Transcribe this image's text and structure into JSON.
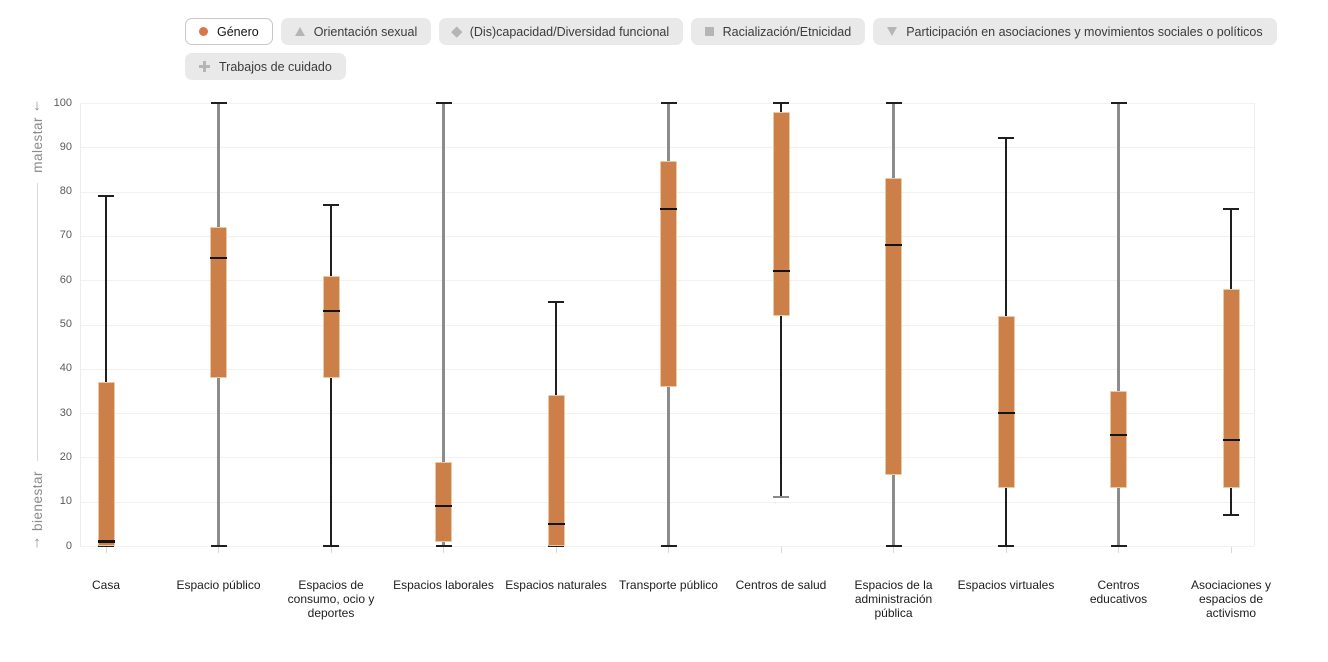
{
  "colors": {
    "accent": "#d9764a",
    "box_fill": "#cd7f4a",
    "box_border": "#e9c9a2",
    "inactive_icon": "#b5b5b5",
    "gray_line": "#8c8c8c",
    "dark_line": "#1f1f1f"
  },
  "legend": {
    "buttons": [
      {
        "label": "Género",
        "icon": "circle-icon",
        "active": true,
        "row": 1
      },
      {
        "label": "Orientación sexual",
        "icon": "triangle-up-icon",
        "active": false,
        "row": 1
      },
      {
        "label": "(Dis)capacidad/Diversidad funcional",
        "icon": "diamond-icon",
        "active": false,
        "row": 1
      },
      {
        "label": "Racialización/Etnicidad",
        "icon": "square-icon",
        "active": false,
        "row": 1
      },
      {
        "label": "Participación en asociaciones y movimientos sociales o políticos",
        "icon": "triangle-down-icon",
        "active": false,
        "row": 1
      },
      {
        "label": "Trabajos de cuidado",
        "icon": "plus-icon",
        "active": false,
        "row": 2
      }
    ]
  },
  "y_axis": {
    "top_arrow": "↓",
    "top_label": "malestar",
    "bottom_label": "bienestar",
    "bottom_arrow": "↑"
  },
  "chart_data": {
    "type": "boxplot",
    "active_series": "Género",
    "ylim": [
      0,
      100
    ],
    "yticks": [
      0,
      10,
      20,
      30,
      40,
      50,
      60,
      70,
      80,
      90,
      100
    ],
    "grid": true,
    "categories": [
      "Casa",
      "Espacio público",
      "Espacios de consumo, ocio y deportes",
      "Espacios laborales",
      "Espacios naturales",
      "Transporte público",
      "Centros de salud",
      "Espacios de la administración pública",
      "Espacios virtuales",
      "Centros educativos",
      "Asociaciones y espacios de activismo"
    ],
    "boxes": [
      {
        "category": "Casa",
        "label": "Casa",
        "low": 0,
        "q1": 0,
        "median": 1,
        "q3": 37,
        "high": 79,
        "range_line": "black"
      },
      {
        "category": "Espacio público",
        "label": "Espacio público",
        "low": 0,
        "q1": 38,
        "median": 65,
        "q3": 72,
        "high": 100,
        "range_line": "gray"
      },
      {
        "category": "Espacios de consumo, ocio y deportes",
        "label": "Espacios de\nconsumo, ocio y\ndeportes",
        "low": 0,
        "q1": 38,
        "median": 53,
        "q3": 61,
        "high": 77,
        "range_line": "black"
      },
      {
        "category": "Espacios laborales",
        "label": "Espacios laborales",
        "low": 0,
        "q1": 1,
        "median": 9,
        "q3": 19,
        "high": 100,
        "range_line": "gray"
      },
      {
        "category": "Espacios naturales",
        "label": "Espacios naturales",
        "low": 0,
        "q1": 0,
        "median": 5,
        "q3": 34,
        "high": 55,
        "range_line": "black"
      },
      {
        "category": "Transporte público",
        "label": "Transporte público",
        "low": 0,
        "q1": 36,
        "median": 76,
        "q3": 87,
        "high": 100,
        "range_line": "gray"
      },
      {
        "category": "Centros de salud",
        "label": "Centros de salud",
        "low": 11,
        "q1": 52,
        "median": 62,
        "q3": 98,
        "high": 100,
        "range_line": "black",
        "low_cap": "gray"
      },
      {
        "category": "Espacios de la administración pública",
        "label": "Espacios de la\nadministración\npública",
        "low": 0,
        "q1": 16,
        "median": 68,
        "q3": 83,
        "high": 100,
        "range_line": "gray"
      },
      {
        "category": "Espacios virtuales",
        "label": "Espacios virtuales",
        "low": 0,
        "q1": 13,
        "median": 30,
        "q3": 52,
        "high": 92,
        "range_line": "black"
      },
      {
        "category": "Centros educativos",
        "label": "Centros\neducativos",
        "low": 0,
        "q1": 13,
        "median": 25,
        "q3": 35,
        "high": 100,
        "range_line": "gray"
      },
      {
        "category": "Asociaciones y espacios de activismo",
        "label": "Asociaciones y\nespacios de\nactivismo",
        "low": 7,
        "q1": 13,
        "median": 24,
        "q3": 58,
        "high": 76,
        "range_line": "black"
      }
    ]
  }
}
